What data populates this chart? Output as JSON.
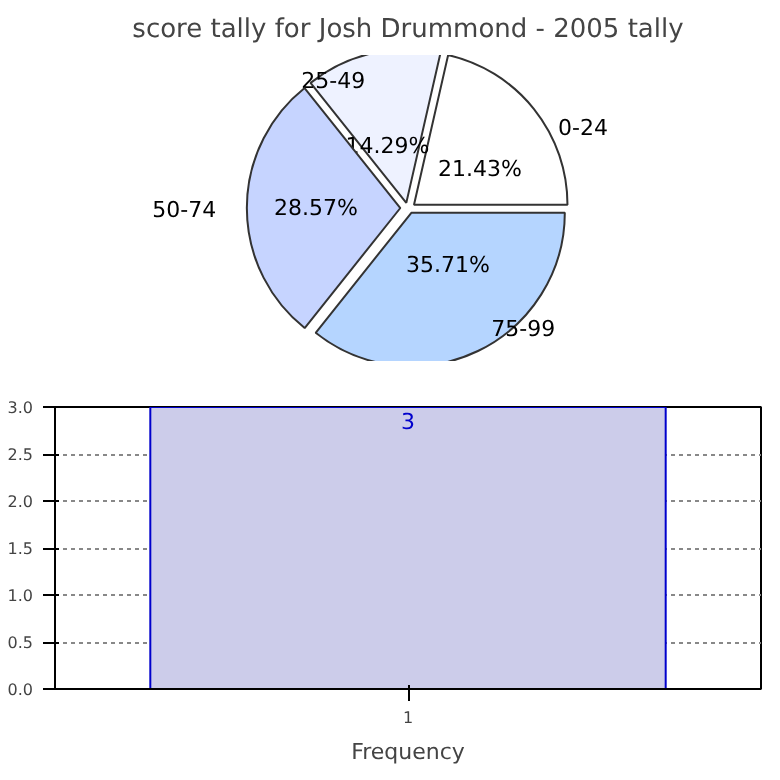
{
  "chart_data": [
    {
      "type": "pie",
      "title": "score tally for Josh Drummond - 2005 tally",
      "categories": [
        "0-24",
        "25-49",
        "50-74",
        "75-99"
      ],
      "values": [
        21.43,
        14.29,
        28.57,
        35.71
      ],
      "colors": [
        "#ffffff",
        "#eef2ff",
        "#c6d4ff",
        "#b5d5ff"
      ],
      "value_labels": [
        "21.43%",
        "14.29%",
        "28.57%",
        "35.71%"
      ]
    },
    {
      "type": "bar",
      "categories": [
        "1"
      ],
      "values": [
        3
      ],
      "color": "#ccccea",
      "xlabel": "Frequency",
      "ylim": [
        0,
        3
      ],
      "yticks": [
        {
          "value": 0,
          "label": "0.0"
        },
        {
          "value": 0.5,
          "label": "0.5"
        },
        {
          "value": 1,
          "label": "1.0"
        },
        {
          "value": 1.5,
          "label": "1.5"
        },
        {
          "value": 2,
          "label": "2.0"
        },
        {
          "value": 2.5,
          "label": "2.5"
        },
        {
          "value": 3,
          "label": "3.0"
        }
      ],
      "grid": true,
      "data_labels": true
    }
  ]
}
